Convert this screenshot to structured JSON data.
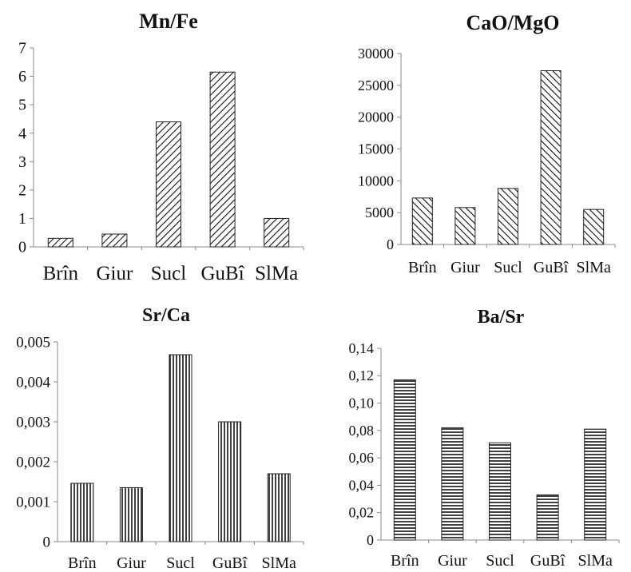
{
  "chart_data": [
    {
      "type": "bar",
      "title": "Mn/Fe",
      "categories": [
        "Brîn",
        "Giur",
        "Sucl",
        "GuBî",
        "SlMa"
      ],
      "values": [
        0.3,
        0.45,
        4.4,
        6.15,
        1.0
      ],
      "yticks": [
        "0",
        "1",
        "2",
        "3",
        "4",
        "5",
        "6",
        "7"
      ],
      "ylim": [
        0,
        7
      ],
      "pattern": "diagonal-right"
    },
    {
      "type": "bar",
      "title": "CaO/MgO",
      "categories": [
        "Brîn",
        "Giur",
        "Sucl",
        "GuBî",
        "SlMa"
      ],
      "values": [
        7300,
        5800,
        8800,
        27300,
        5500
      ],
      "yticks": [
        "0",
        "5000",
        "10000",
        "15000",
        "20000",
        "25000",
        "30000"
      ],
      "ylim": [
        0,
        30000
      ],
      "pattern": "diagonal-left"
    },
    {
      "type": "bar",
      "title": "Sr/Ca",
      "categories": [
        "Brîn",
        "Giur",
        "Sucl",
        "GuBî",
        "SlMa"
      ],
      "values": [
        0.00146,
        0.00135,
        0.00468,
        0.003,
        0.0017
      ],
      "yticks": [
        "0",
        "0,001",
        "0,002",
        "0,003",
        "0,004",
        "0,005"
      ],
      "ylim": [
        0,
        0.005
      ],
      "pattern": "vertical"
    },
    {
      "type": "bar",
      "title": "Ba/Sr",
      "categories": [
        "Brîn",
        "Giur",
        "Sucl",
        "GuBî",
        "SlMa"
      ],
      "values": [
        0.117,
        0.082,
        0.071,
        0.033,
        0.081
      ],
      "yticks": [
        "0",
        "0,02",
        "0,04",
        "0,06",
        "0,08",
        "0,10",
        "0,12",
        "0,14"
      ],
      "ylim": [
        0,
        0.14
      ],
      "pattern": "horizontal"
    }
  ]
}
